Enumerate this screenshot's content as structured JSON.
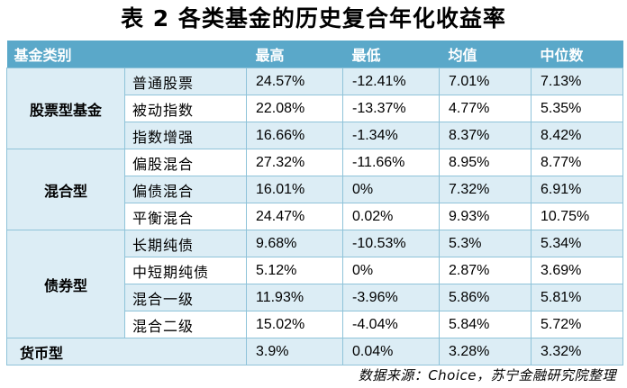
{
  "title": "表 2  各类基金的历史复合年化收益率",
  "headers": [
    "基金类别",
    "",
    "最高",
    "最低",
    "均值",
    "中位数"
  ],
  "groups": [
    {
      "name": "股票型基金",
      "rows": [
        {
          "sub": "普通股票",
          "high": "24.57%",
          "low": "-12.41%",
          "mean": "7.01%",
          "median": "7.13%"
        },
        {
          "sub": "被动指数",
          "high": "22.08%",
          "low": "-13.37%",
          "mean": "4.77%",
          "median": "5.35%"
        },
        {
          "sub": "指数增强",
          "high": "16.66%",
          "low": "-1.34%",
          "mean": "8.37%",
          "median": "8.42%"
        }
      ]
    },
    {
      "name": "混合型",
      "rows": [
        {
          "sub": "偏股混合",
          "high": "27.32%",
          "low": "-11.66%",
          "mean": "8.95%",
          "median": "8.77%"
        },
        {
          "sub": "偏债混合",
          "high": "16.01%",
          "low": "0%",
          "mean": "7.32%",
          "median": "6.91%"
        },
        {
          "sub": "平衡混合",
          "high": "24.47%",
          "low": "0.02%",
          "mean": "9.93%",
          "median": "10.75%"
        }
      ]
    },
    {
      "name": "债券型",
      "rows": [
        {
          "sub": "长期纯债",
          "high": "9.68%",
          "low": "-10.53%",
          "mean": "5.3%",
          "median": "5.34%"
        },
        {
          "sub": "中短期纯债",
          "high": "5.12%",
          "low": "0%",
          "mean": "2.87%",
          "median": "3.69%"
        },
        {
          "sub": "混合一级",
          "high": "11.93%",
          "low": "-3.96%",
          "mean": "5.86%",
          "median": "5.81%"
        },
        {
          "sub": "混合二级",
          "high": "15.02%",
          "low": "-4.04%",
          "mean": "5.84%",
          "median": "5.72%"
        }
      ]
    },
    {
      "name": "货币型",
      "rows": [
        {
          "sub": "",
          "high": "3.9%",
          "low": "0.04%",
          "mean": "3.28%",
          "median": "3.32%"
        }
      ]
    }
  ],
  "source": "数据来源：Choice，苏宁金融研究院整理"
}
